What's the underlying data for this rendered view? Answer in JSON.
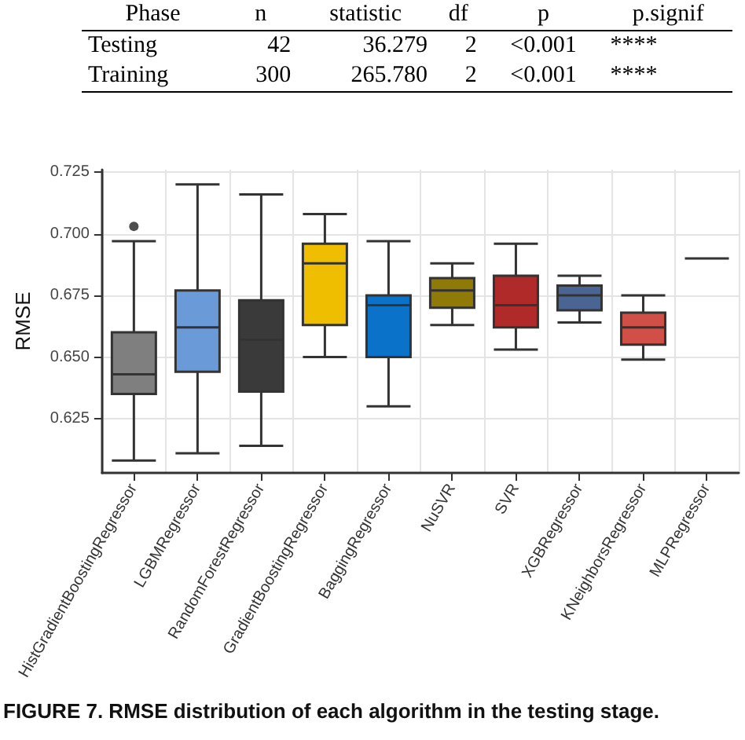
{
  "chart_data": {
    "type": "box",
    "ylabel": "RMSE",
    "categories": [
      "HistGradientBoostingRegressor",
      "LGBMRegressor",
      "RandomForestRegressor",
      "GradientBoostingRegressor",
      "BaggingRegressor",
      "NuSVR",
      "SVR",
      "XGBRegressor",
      "KNeighborsRegressor",
      "MLPRegressor"
    ],
    "colors": [
      "#7f7f7f",
      "#6a9bd8",
      "#3a3a3a",
      "#f0be00",
      "#0a72c8",
      "#8f7a08",
      "#b02a2a",
      "#4a6494",
      "#d05048",
      "#333333"
    ],
    "boxes": [
      {
        "low": 0.608,
        "q1": 0.635,
        "median": 0.643,
        "q3": 0.66,
        "high": 0.697,
        "outliers": [
          0.703
        ]
      },
      {
        "low": 0.611,
        "q1": 0.644,
        "median": 0.662,
        "q3": 0.677,
        "high": 0.72
      },
      {
        "low": 0.614,
        "q1": 0.636,
        "median": 0.657,
        "q3": 0.673,
        "high": 0.716
      },
      {
        "low": 0.65,
        "q1": 0.663,
        "median": 0.688,
        "q3": 0.696,
        "high": 0.708
      },
      {
        "low": 0.63,
        "q1": 0.65,
        "median": 0.671,
        "q3": 0.675,
        "high": 0.697
      },
      {
        "low": 0.663,
        "q1": 0.67,
        "median": 0.677,
        "q3": 0.682,
        "high": 0.688
      },
      {
        "low": 0.653,
        "q1": 0.662,
        "median": 0.671,
        "q3": 0.683,
        "high": 0.696
      },
      {
        "low": 0.664,
        "q1": 0.669,
        "median": 0.675,
        "q3": 0.679,
        "high": 0.683
      },
      {
        "low": 0.649,
        "q1": 0.655,
        "median": 0.662,
        "q3": 0.668,
        "high": 0.675
      },
      {
        "low": 0.69,
        "q1": 0.69,
        "median": 0.69,
        "q3": 0.69,
        "high": 0.69
      }
    ],
    "ylim": [
      0.603,
      0.726
    ],
    "yticks": [
      0.625,
      {
        "value": 0.65,
        "label": "0.650"
      },
      0.675,
      {
        "value": 0.7,
        "label": "0.700"
      },
      0.725
    ],
    "grid": true,
    "annotations": [
      "Phase",
      "n",
      "statistic",
      "df",
      "p",
      "p.signif",
      "Testing",
      "42",
      "36.279",
      "2",
      "<0.001",
      "****",
      "Training",
      "300",
      "265.780",
      "2",
      "<0.001",
      "****",
      "FIGURE 7. RMSE distribution of each algorithm in the testing stage."
    ]
  }
}
